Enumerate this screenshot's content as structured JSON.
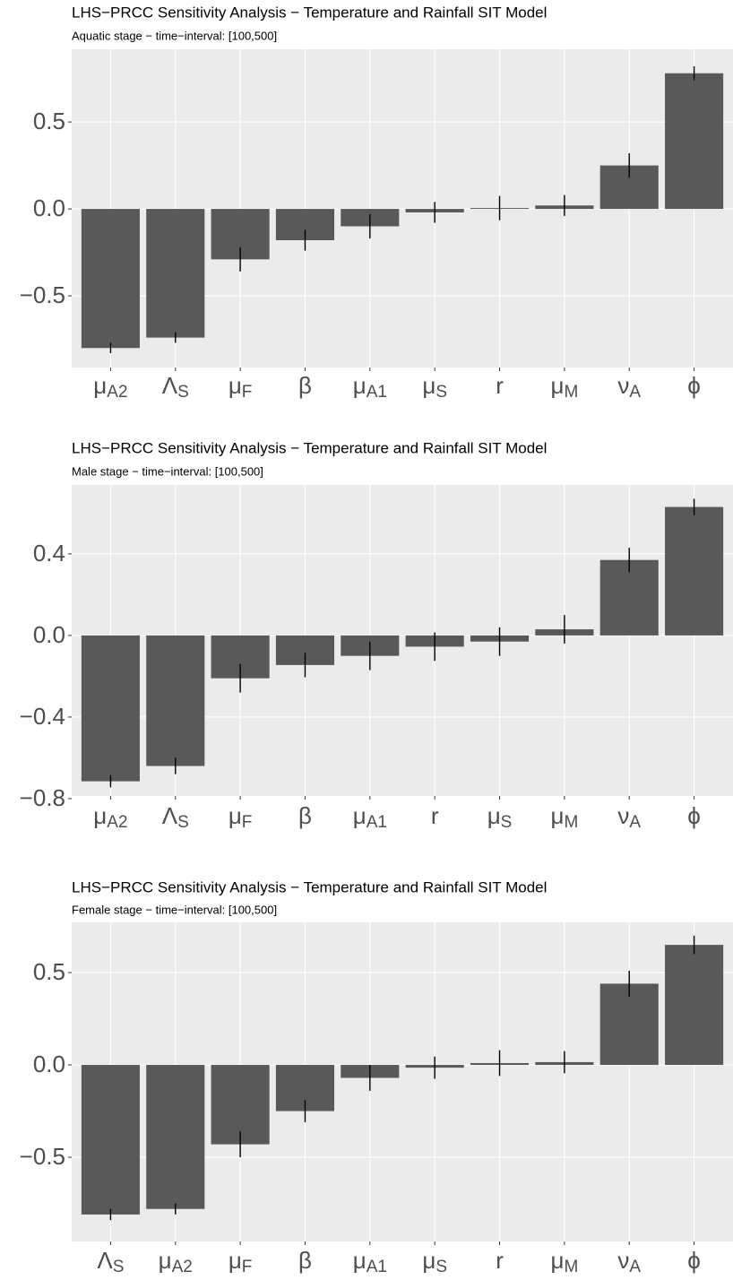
{
  "chart_data": [
    {
      "type": "bar",
      "title": "LHS−PRCC Sensitivity Analysis − Temperature and Rainfall SIT Model",
      "subtitle": "Aquatic stage − time−interval: [100,500]",
      "categories": [
        {
          "symbol": "μ",
          "subscript": "A2"
        },
        {
          "symbol": "Λ",
          "subscript": "S"
        },
        {
          "symbol": "μ",
          "subscript": "F"
        },
        {
          "symbol": "β"
        },
        {
          "symbol": "μ",
          "subscript": "A1"
        },
        {
          "symbol": "μ",
          "subscript": "S"
        },
        {
          "symbol": "r"
        },
        {
          "symbol": "μ",
          "subscript": "M"
        },
        {
          "symbol": "ν",
          "subscript": "A"
        },
        {
          "symbol": "ϕ"
        }
      ],
      "values": [
        -0.8,
        -0.74,
        -0.29,
        -0.18,
        -0.1,
        -0.02,
        0.005,
        0.02,
        0.25,
        0.78
      ],
      "errors": [
        0.03,
        0.03,
        0.07,
        0.06,
        0.07,
        0.06,
        0.07,
        0.06,
        0.07,
        0.04
      ],
      "color": "#595959",
      "error_color": "#000000",
      "background": "#ebebeb",
      "grid": true,
      "ylim": [
        -0.912,
        0.918
      ],
      "yticks": [
        {
          "value": -0.5,
          "label": "−0.5"
        },
        {
          "value": 0,
          "label": "0.0"
        },
        0.5
      ]
    },
    {
      "type": "bar",
      "title": "LHS−PRCC Sensitivity Analysis − Temperature and Rainfall SIT Model",
      "subtitle": "Male stage − time−interval: [100,500]",
      "categories": [
        {
          "symbol": "μ",
          "subscript": "A2"
        },
        {
          "symbol": "Λ",
          "subscript": "S"
        },
        {
          "symbol": "μ",
          "subscript": "F"
        },
        {
          "symbol": "β"
        },
        {
          "symbol": "μ",
          "subscript": "A1"
        },
        {
          "symbol": "r"
        },
        {
          "symbol": "μ",
          "subscript": "S"
        },
        {
          "symbol": "μ",
          "subscript": "M"
        },
        {
          "symbol": "ν",
          "subscript": "A"
        },
        {
          "symbol": "ϕ"
        }
      ],
      "values": [
        -0.715,
        -0.64,
        -0.21,
        -0.145,
        -0.1,
        -0.055,
        -0.03,
        0.03,
        0.37,
        0.63
      ],
      "errors": [
        0.03,
        0.04,
        0.07,
        0.06,
        0.07,
        0.07,
        0.07,
        0.07,
        0.06,
        0.04
      ],
      "color": "#595959",
      "error_color": "#000000",
      "background": "#ebebeb",
      "grid": true,
      "ylim": [
        -0.787,
        0.738
      ],
      "yticks": [
        {
          "value": -0.8,
          "label": "−0.8"
        },
        {
          "value": -0.4,
          "label": "−0.4"
        },
        {
          "value": 0,
          "label": "0.0"
        },
        0.4
      ]
    },
    {
      "type": "bar",
      "title": "LHS−PRCC Sensitivity Analysis − Temperature and Rainfall SIT Model",
      "subtitle": "Female stage − time−interval: [100,500]",
      "categories": [
        {
          "symbol": "Λ",
          "subscript": "S"
        },
        {
          "symbol": "μ",
          "subscript": "A2"
        },
        {
          "symbol": "μ",
          "subscript": "F"
        },
        {
          "symbol": "β"
        },
        {
          "symbol": "μ",
          "subscript": "A1"
        },
        {
          "symbol": "μ",
          "subscript": "S"
        },
        {
          "symbol": "r"
        },
        {
          "symbol": "μ",
          "subscript": "M"
        },
        {
          "symbol": "ν",
          "subscript": "A"
        },
        {
          "symbol": "ϕ"
        }
      ],
      "values": [
        -0.81,
        -0.78,
        -0.43,
        -0.25,
        -0.07,
        -0.015,
        0.01,
        0.015,
        0.44,
        0.65
      ],
      "errors": [
        0.03,
        0.03,
        0.07,
        0.06,
        0.07,
        0.06,
        0.07,
        0.06,
        0.07,
        0.05
      ],
      "color": "#595959",
      "error_color": "#000000",
      "background": "#ebebeb",
      "grid": true,
      "ylim": [
        -0.956,
        0.772
      ],
      "yticks": [
        {
          "value": -0.5,
          "label": "−0.5"
        },
        {
          "value": 0,
          "label": "0.0"
        },
        0.5
      ]
    }
  ]
}
